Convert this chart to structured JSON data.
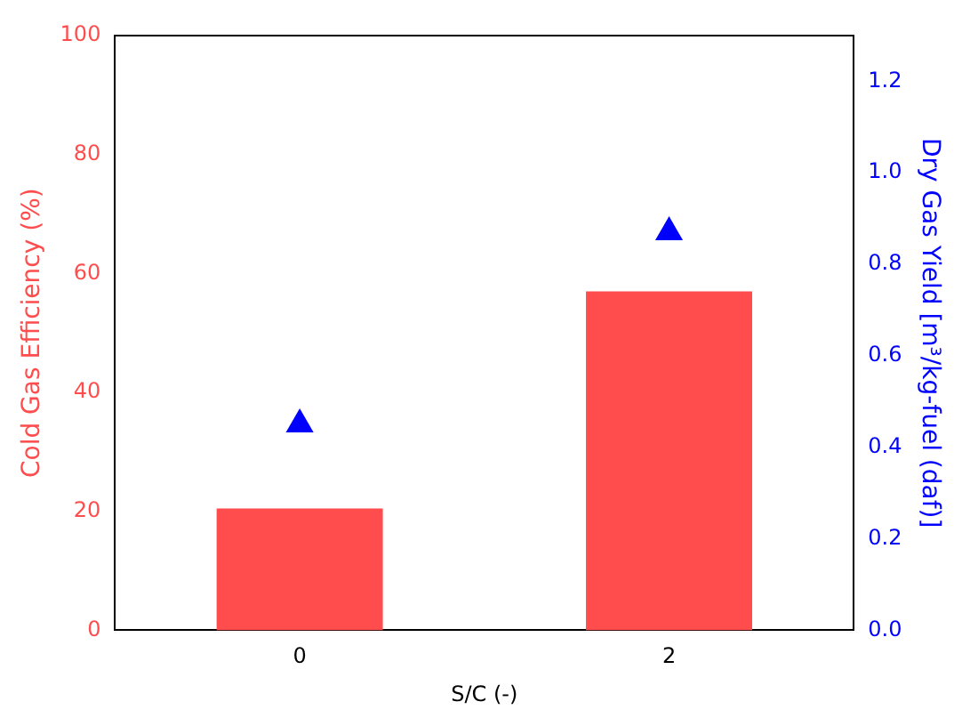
{
  "chart_data": {
    "type": "bar",
    "xlabel": "S/C (-)",
    "ylabel": "Cold Gas Efficiency (%)",
    "y2label": "Dry Gas Yield [m³/kg-fuel (daf)]",
    "categories": [
      "0",
      "2"
    ],
    "series": [
      {
        "color": "#ff4d4d",
        "values": [
          20.5,
          57
        ]
      },
      {
        "type": "scatter",
        "axis": "y2",
        "color": "#0000ff",
        "marker": "triangle",
        "values": [
          0.45,
          0.87
        ]
      }
    ],
    "ylim": [
      0,
      100
    ],
    "yticks": [
      0,
      20,
      40,
      60,
      80,
      100
    ],
    "y2lim": [
      0,
      1.3
    ],
    "y2ticks": [
      {
        "value": 0,
        "label": "0.0"
      },
      0.2,
      0.4,
      0.6,
      0.8,
      {
        "value": 1,
        "label": "1.0"
      },
      1.2
    ],
    "grid": false,
    "legend": false
  }
}
